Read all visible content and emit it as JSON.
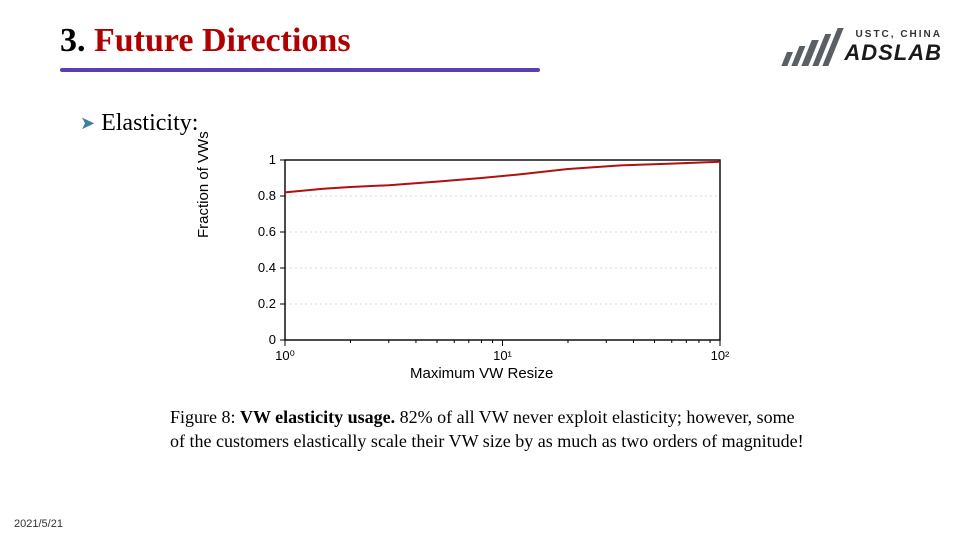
{
  "header": {
    "number": "3.",
    "title": "Future Directions",
    "underline_color": "#5b3fb0",
    "title_color": "#b00000"
  },
  "logo": {
    "subtext": "USTC, CHINA",
    "maintext": "ADSLAB",
    "bar_color": "#5a5f66",
    "bar_heights": [
      14,
      20,
      26,
      32,
      38
    ]
  },
  "bullet": {
    "marker": "➤",
    "marker_color": "#3b7fa0",
    "text": "Elasticity:"
  },
  "chart": {
    "type": "line",
    "x_scale": "log",
    "y_scale": "linear",
    "xlim": [
      1,
      100
    ],
    "ylim": [
      0,
      1
    ],
    "y_ticks": [
      0,
      0.2,
      0.4,
      0.6,
      0.8,
      1
    ],
    "x_ticks": [
      1,
      10,
      100
    ],
    "x_tick_labels": [
      "10⁰",
      "10¹",
      "10²"
    ],
    "series": {
      "color": "#b01010",
      "line_width": 2,
      "x": [
        1,
        1.5,
        2,
        3,
        5,
        8,
        12,
        20,
        35,
        60,
        100
      ],
      "y": [
        0.82,
        0.84,
        0.85,
        0.86,
        0.88,
        0.9,
        0.92,
        0.95,
        0.97,
        0.98,
        0.99
      ]
    },
    "grid_color": "#d9d9d9",
    "axis_color": "#000000",
    "tick_fontsize": 13,
    "label_fontsize": 15,
    "xlabel": "Maximum VW Resize",
    "ylabel": "Fraction of VWs"
  },
  "caption": {
    "figure": "Figure 8:",
    "title": "VW elasticity usage.",
    "body": " 82% of all VW never exploit elasticity; however, some of the customers elastically scale their VW size by as much as two orders of magnitude!"
  },
  "footer": {
    "date": "2021/5/21"
  }
}
